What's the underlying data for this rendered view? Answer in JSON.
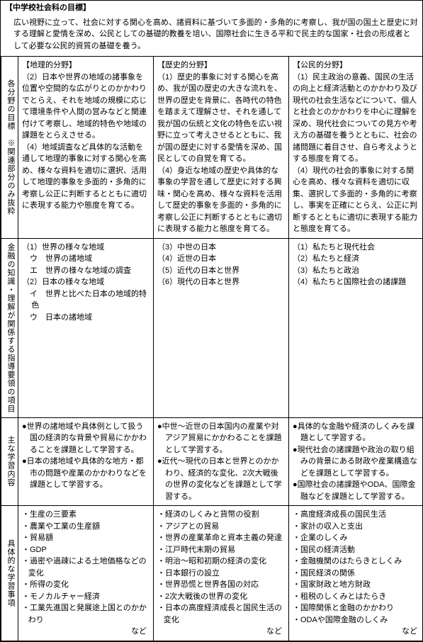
{
  "header": {
    "title": "【中学校社会科の目標】",
    "body": "広い視野に立って、社会に対する関心を高め、諸資料に基づいて多面的・多角的に考察し、我が国の国土と歴史に対する理解と愛情を深め、公民としての基礎的教養を培い、国際社会に生きる平和で民主的な国家・社会の形成者として必要な公民的資質の基礎を養う。"
  },
  "col_headers": {
    "geo": "【地理的分野】",
    "hist": "【歴史的分野】",
    "civic": "【公民的分野】"
  },
  "row_labels": {
    "goals": "各分野の目標　※関連部分のみ抜粋",
    "finance": "金融の知識・理解が関係する指導要領の項目",
    "content": "主な学習内容",
    "items": "具体的な学習事項"
  },
  "goals": {
    "geo": "（2）日本や世界の地域の諸事象を位置や空間的な広がりとのかかわりでとらえ、それを地域の規模に応じて環境条件や人間の営みなどと関連付けて考察し、地域的特色や地域の課題をとらえさせる。\n（4）地域調査など具体的な活動を通して地理的事象に対する関心を高め、様々な資料を適切に選択、活用して地理的事象を多面的・多角的に考察し公正に判断するとともに適切に表現する能力や態度を育てる。",
    "hist": "（1）歴史的事象に対する関心を高め、我が国の歴史の大きな流れを、世界の歴史を背景に、各時代の特色を踏まえて理解させ、それを通して我が国の伝統と文化の特色を広い視野に立って考えさせるとともに、我が国の歴史に対する愛情を深め、国民としての自覚を育てる。\n（4）身近な地域の歴史や具体的な事象の学習を通して歴史に対する興味・関心を高め、様々な資料を活用して歴史的事象を多面的・多角的に考察し公正に判断するとともに適切に表現する能力と態度を育てる。",
    "civic": "（1）民主政治の意義、国民の生活の向上と経済活動とのかかわり及び現代の社会生活などについて、個人と社会とのかかわりを中心に理解を深め、現代社会についての見方や考え方の基礎を養うとともに、社会の諸問題に着目させ、自ら考えようとする態度を育てる。\n（4）現代の社会的事象に対する関心を高め、様々な資料を適切に収集、選択して多面的・多角的に考察し、事実を正確にとらえ、公正に判断するとともに適切に表現する能力と態度を育てる。"
  },
  "finance": {
    "geo": [
      "（1）世界の様々な地域",
      "　ウ　世界の諸地域",
      "　エ　世界の様々な地域の調査",
      "（2）日本の様々な地域",
      "　イ　世界と比べた日本の地域的特色",
      "　ウ　日本の諸地域"
    ],
    "hist": [
      "（3）中世の日本",
      "（4）近世の日本",
      "（5）近代の日本と世界",
      "（6）現代の日本と世界"
    ],
    "civic": [
      "（1）私たちと現代社会",
      "（2）私たちと経済",
      "（3）私たちと政治",
      "（4）私たちと国際社会の諸課題"
    ]
  },
  "content": {
    "geo": [
      "●世界の諸地域や具体例として扱う国の経済的な背景や貿易にかかわることを課題として学習する。",
      "●日本の諸地域や具体的な地方・都市の問題や産業のかかわりなどを課題として学習する。"
    ],
    "hist": [
      "●中世〜近世の日本国内の産業や対アジア貿易にかかわることを課題として学習する。",
      "●近代〜現代の日本と世界とのかかわり、経済的な変化、2次大戦後の世界の変化などを課題として学習する。"
    ],
    "civic": [
      "●具体的な金融や経済のしくみを課題として学習する。",
      "●現代社会の諸課題や政治の取り組みの背景にある財政や産業構造などを課題として学習する。",
      "●国際社会の諸課題やODA、国際金融などを課題として学習する。"
    ]
  },
  "items": {
    "geo": [
      "・生産の三要素",
      "・農業や工業の生産額",
      "・貿易額",
      "・GDP",
      "・過密や過疎による土地価格などの変化",
      "・所得の変化",
      "・モノカルチャー経済",
      "・工業先進国と発展途上国とのかかわり"
    ],
    "hist": [
      "・経済のしくみと貨幣の役割",
      "・アジアとの貿易",
      "・世界の産業革命と資本主義の発達",
      "・江戸時代末期の貿易",
      "・明治〜昭和初期の経済の変化",
      "・日本銀行の設立",
      "・世界恐慌と世界各国の対応",
      "・2次大戦後の世界の変化",
      "・日本の高度経済成長と国民生活の変化"
    ],
    "civic": [
      "・高度経済成長の国民生活",
      "・家計の収入と支出",
      "・企業のしくみ",
      "・国民の経済活動",
      "・金融機関のはたらきとしくみ",
      "・国民経済の関係",
      "・国家財政と地方財政",
      "・租税のしくみとはたらき",
      "・国際関係と金融のかかわり",
      "・ODAや国際金融のしくみ"
    ],
    "etc": "など"
  }
}
